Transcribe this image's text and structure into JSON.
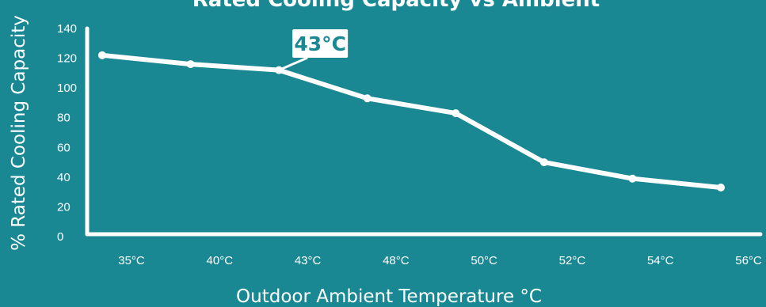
{
  "chart_data": {
    "type": "line",
    "title": "Rated Cooling Capacity vs Ambient",
    "xlabel": "Outdoor Ambient Temperature °C",
    "ylabel": "% Rated Cooling Capacity",
    "categories": [
      "35°C",
      "40°C",
      "43°C",
      "48°C",
      "50°C",
      "52°C",
      "54°C",
      "56°C"
    ],
    "yticks": [
      "0",
      "20",
      "40",
      "60",
      "80",
      "100",
      "120",
      "140"
    ],
    "ylim": [
      0,
      140
    ],
    "series": [
      {
        "values": [
          122,
          116,
          112,
          93,
          83,
          50,
          39,
          33
        ]
      }
    ],
    "annotation": {
      "category": "43°C",
      "label": "43°C"
    },
    "grid": false,
    "colors": {
      "background": "#1a8893",
      "line": "#ffffff",
      "callout_text": "#1a8893"
    }
  }
}
